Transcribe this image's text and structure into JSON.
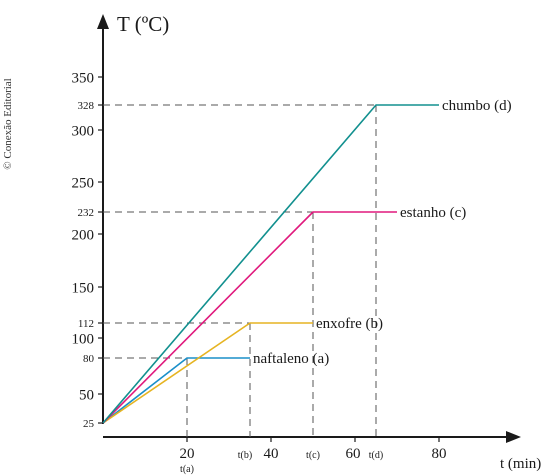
{
  "credit": "© Conexão Editorial",
  "chart_data": {
    "type": "line",
    "ylabel": "T (ºC)",
    "xlabel": "t (min)",
    "xlim": [
      0,
      90
    ],
    "ylim": [
      0,
      380
    ],
    "x_ticks": [
      {
        "value": 20,
        "label": "20"
      },
      {
        "value": 40,
        "label": "40"
      },
      {
        "value": 60,
        "label": "60"
      },
      {
        "value": 80,
        "label": "80"
      }
    ],
    "x_event_ticks": [
      {
        "value": 20,
        "label": "t(a)"
      },
      {
        "value": 35,
        "label": "t(b)"
      },
      {
        "value": 50,
        "label": "t(c)"
      },
      {
        "value": 65,
        "label": "t(d)"
      }
    ],
    "y_ticks": [
      {
        "value": 25,
        "label": "25",
        "size": "small"
      },
      {
        "value": 50,
        "label": "50",
        "size": "large"
      },
      {
        "value": 80,
        "label": "80",
        "size": "small"
      },
      {
        "value": 100,
        "label": "100",
        "size": "large"
      },
      {
        "value": 112,
        "label": "112",
        "size": "small"
      },
      {
        "value": 150,
        "label": "150",
        "size": "large"
      },
      {
        "value": 200,
        "label": "200",
        "size": "large"
      },
      {
        "value": 232,
        "label": "232",
        "size": "small"
      },
      {
        "value": 250,
        "label": "250",
        "size": "large"
      },
      {
        "value": 300,
        "label": "300",
        "size": "large"
      },
      {
        "value": 328,
        "label": "328",
        "size": "small"
      },
      {
        "value": 350,
        "label": "350",
        "size": "large"
      }
    ],
    "series": [
      {
        "name": "naftaleno (a)",
        "color": "#1a8fc9",
        "points": [
          [
            0,
            25
          ],
          [
            20,
            80
          ],
          [
            35,
            80
          ]
        ]
      },
      {
        "name": "enxofre (b)",
        "color": "#e6b422",
        "points": [
          [
            0,
            25
          ],
          [
            35,
            112
          ],
          [
            50,
            112
          ]
        ]
      },
      {
        "name": "estanho (c)",
        "color": "#e0197d",
        "points": [
          [
            0,
            25
          ],
          [
            50,
            232
          ],
          [
            70,
            232
          ]
        ]
      },
      {
        "name": "chumbo (d)",
        "color": "#12908f",
        "points": [
          [
            0,
            25
          ],
          [
            65,
            328
          ],
          [
            80,
            328
          ]
        ]
      }
    ]
  }
}
